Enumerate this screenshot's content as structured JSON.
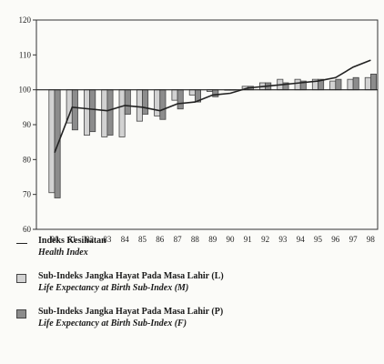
{
  "chart_data": {
    "type": "bar",
    "categories": [
      "80",
      "81",
      "82",
      "83",
      "84",
      "85",
      "86",
      "87",
      "88",
      "89",
      "90",
      "91",
      "92",
      "93",
      "94",
      "95",
      "96",
      "97",
      "98"
    ],
    "ylim": [
      60,
      120
    ],
    "yticks": [
      60,
      70,
      80,
      90,
      100,
      110,
      120
    ],
    "baseline": 100,
    "grid": false,
    "legend_placement": "bottom",
    "series": [
      {
        "name": "Sub-Indeks Jangka Hayat Pada Masa Lahir (L)",
        "name_en": "Life Expectancy at Birth Sub-Index (M)",
        "type": "bar",
        "color": "#d2d2d2",
        "values": [
          70.5,
          90.5,
          87.0,
          86.5,
          86.5,
          91.0,
          92.5,
          97.0,
          98.5,
          99.5,
          100.0,
          101.0,
          102.0,
          103.0,
          103.0,
          103.0,
          102.5,
          103.0,
          103.5
        ]
      },
      {
        "name": "Sub-Indeks Jangka Hayat Pada Masa Lahir (P)",
        "name_en": "Life Expectancy at Birth Sub-Index (F)",
        "type": "bar",
        "color": "#8c8c8c",
        "values": [
          69.0,
          88.5,
          88.0,
          87.0,
          93.0,
          93.0,
          91.5,
          94.5,
          96.5,
          98.0,
          100.0,
          101.0,
          102.0,
          102.0,
          102.5,
          103.0,
          103.0,
          103.5,
          104.5
        ]
      },
      {
        "name": "Indeks Kesihatan",
        "name_en": "Health Index",
        "type": "line",
        "color": "#222222",
        "values": [
          82.0,
          95.0,
          94.5,
          94.0,
          95.5,
          95.0,
          94.0,
          96.0,
          96.5,
          98.5,
          99.0,
          100.5,
          101.0,
          101.5,
          102.0,
          102.5,
          103.5,
          106.5,
          108.5
        ]
      }
    ]
  },
  "legend": {
    "items": [
      {
        "kind": "line",
        "label": "Indeks Kesihatan",
        "label_en": "Health Index",
        "color": "#222222"
      },
      {
        "kind": "box",
        "label": "Sub-Indeks Jangka Hayat Pada Masa Lahir (L)",
        "label_en": "Life Expectancy at Birth Sub-Index (M)",
        "color": "#d2d2d2"
      },
      {
        "kind": "box",
        "label": "Sub-Indeks Jangka Hayat Pada Masa Lahir (P)",
        "label_en": "Life Expectancy at Birth Sub-Index (F)",
        "color": "#8c8c8c"
      }
    ]
  }
}
